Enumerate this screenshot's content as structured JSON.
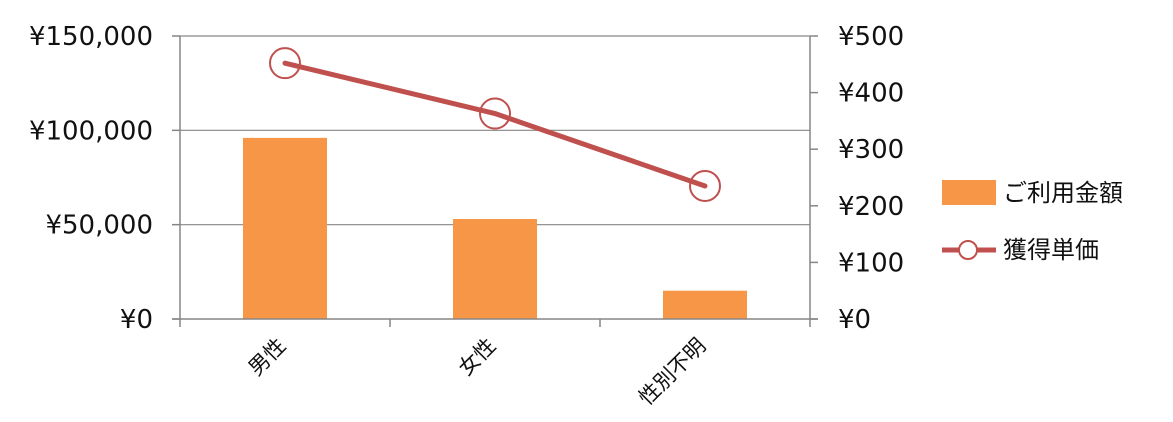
{
  "chart_data": {
    "type": "bar",
    "categories": [
      "男性",
      "女性",
      "性別不明"
    ],
    "series": [
      {
        "name": "ご利用金額",
        "type": "bar",
        "axis": "left",
        "color": "#F79646",
        "values": [
          96000,
          53000,
          15000
        ]
      },
      {
        "name": "獲得単価",
        "type": "line",
        "axis": "right",
        "color": "#C0504D",
        "marker": "open-circle",
        "values": [
          452,
          363,
          235
        ]
      }
    ],
    "y_left": {
      "ylim": [
        0,
        150000
      ],
      "ticks": [
        0,
        50000,
        100000,
        150000
      ],
      "tick_labels": [
        "¥0",
        "¥50,000",
        "¥100,000",
        "¥150,000"
      ]
    },
    "y_right": {
      "ylim": [
        0,
        500
      ],
      "ticks": [
        0,
        100,
        200,
        300,
        400,
        500
      ],
      "tick_labels": [
        "¥0",
        "¥100",
        "¥200",
        "¥300",
        "¥400",
        "¥500"
      ]
    },
    "grid": true,
    "legend_position": "right",
    "title": "",
    "xlabel": "",
    "ylabel": ""
  }
}
